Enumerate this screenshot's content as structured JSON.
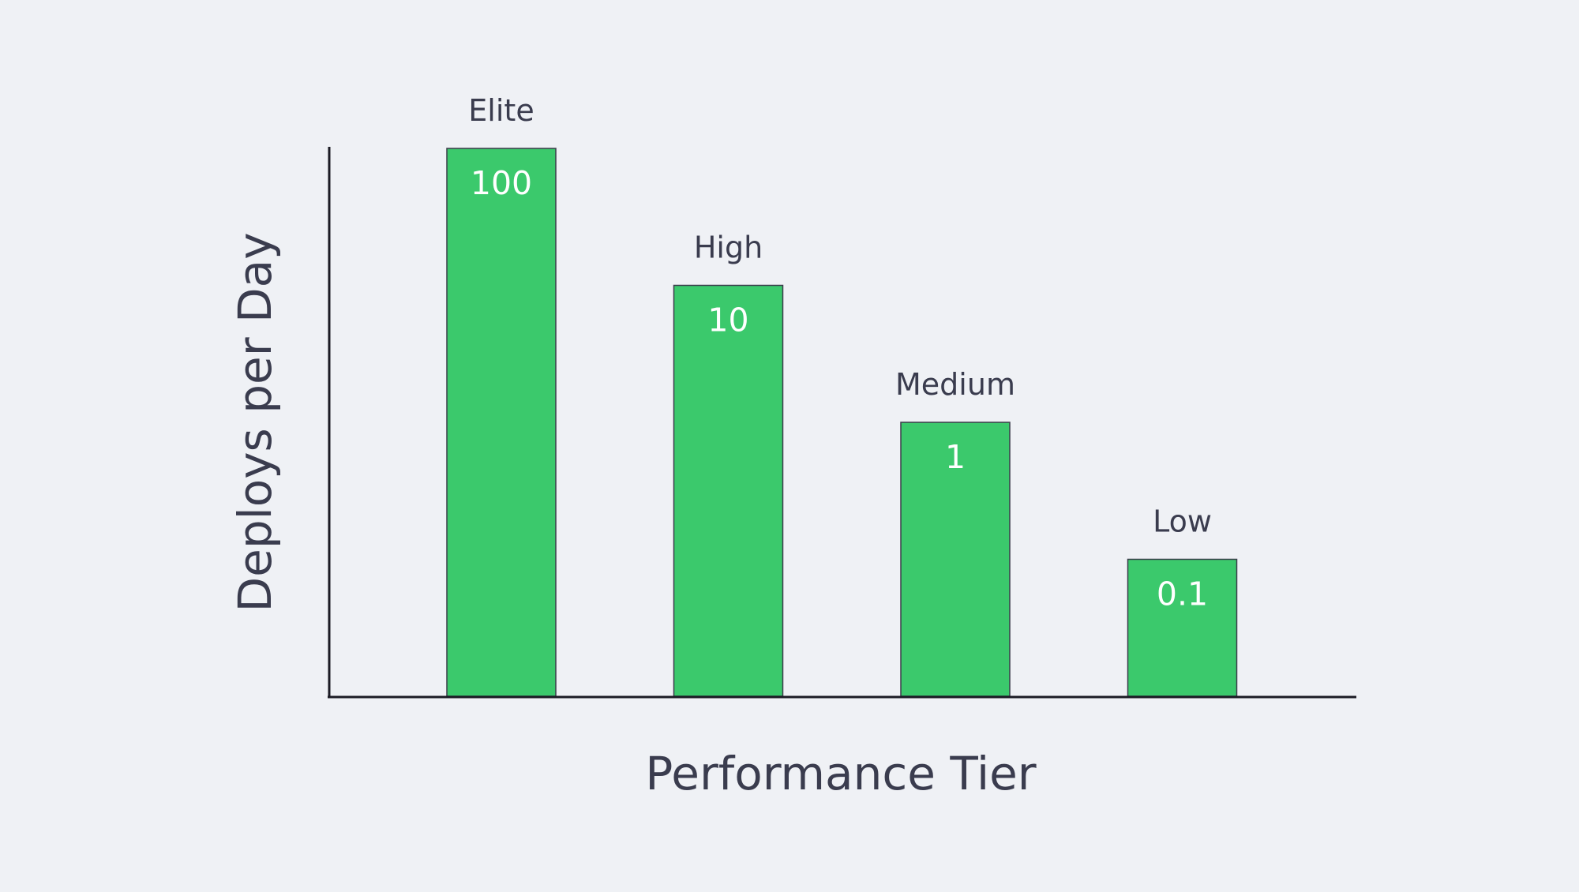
{
  "colors": {
    "background": "#eff1f5",
    "bar": "#3bc96c",
    "bar_outline": "#3b3b4a",
    "text": "#3a3c4e",
    "value_label_inside": "#ffffff",
    "value_label_outside": "#3bc96c",
    "axis": "#1b1b24"
  },
  "chart_data": {
    "type": "bar",
    "title": "",
    "xlabel": "Performance Tier",
    "ylabel": "Deploys per Day",
    "categories": [
      "Elite",
      "High",
      "Medium",
      "Low"
    ],
    "values": [
      100,
      10,
      1,
      0.1
    ],
    "value_labels": [
      "100",
      "10",
      "1",
      "0.1"
    ],
    "yscale": "log",
    "ylim": [
      0.01,
      100
    ],
    "grid": false,
    "legend": "none",
    "show_y_ticks": false
  }
}
